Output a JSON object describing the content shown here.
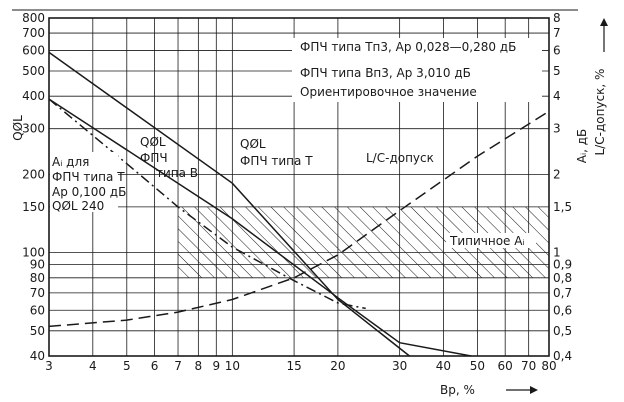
{
  "chart_data": {
    "type": "line",
    "x_scale": "log",
    "y_scale": "log",
    "xlim": [
      3,
      80
    ],
    "ylim_left": [
      40,
      800
    ],
    "ylim_right": [
      0.4,
      8
    ],
    "grid": true,
    "x_ticks": [
      3,
      4,
      5,
      6,
      7,
      8,
      9,
      10,
      15,
      20,
      30,
      40,
      50,
      60,
      70,
      80
    ],
    "x_tick_labels": [
      "3",
      "4",
      "5",
      "6",
      "7",
      "8",
      "9",
      "10",
      "15",
      "20",
      "30",
      "40",
      "50",
      "60",
      "70",
      "80"
    ],
    "y_left_ticks": [
      40,
      50,
      60,
      70,
      80,
      90,
      100,
      150,
      200,
      300,
      400,
      500,
      600,
      700,
      800
    ],
    "y_left_tick_labels": [
      "40",
      "50",
      "60",
      "70",
      "80",
      "90",
      "100",
      "150",
      "200",
      "300",
      "400",
      "500",
      "600",
      "700",
      "800"
    ],
    "y_right_ticks": [
      0.4,
      0.5,
      0.6,
      0.7,
      0.8,
      0.9,
      1,
      1.5,
      2,
      3,
      4,
      5,
      6,
      7,
      8
    ],
    "y_right_tick_labels": [
      "0,4",
      "0,5",
      "0,6",
      "0,7",
      "0,8",
      "0,9",
      "1",
      "1,5",
      "2",
      "3",
      "4",
      "5",
      "6",
      "7",
      "8"
    ],
    "xlabel": "Bр, %",
    "ylabel_left": "QØL",
    "ylabel_right_1": "Aᵢ, дБ",
    "ylabel_right_2": "L/C-допуск, %",
    "series": [
      {
        "name": "QØL ФПЧ типа Т",
        "style": "solid",
        "x": [
          3,
          10,
          20,
          32
        ],
        "y": [
          590,
          185,
          66,
          40
        ]
      },
      {
        "name": "QØL ФПЧ типа В",
        "style": "solid",
        "x": [
          3,
          10,
          20,
          30,
          48
        ],
        "y": [
          390,
          135,
          67,
          45,
          40
        ]
      },
      {
        "name": "Aᵢ для ФПЧ типа Т",
        "style": "dash-dot",
        "x": [
          3,
          5,
          7,
          10,
          15,
          20,
          24
        ],
        "y": [
          3.9,
          2.2,
          1.5,
          1.05,
          0.78,
          0.64,
          0.61
        ]
      },
      {
        "name": "L/C-допуск",
        "style": "dashed",
        "x": [
          3,
          5,
          7,
          10,
          15,
          20,
          30,
          50,
          80
        ],
        "y": [
          0.52,
          0.55,
          0.59,
          0.66,
          0.8,
          0.98,
          1.45,
          2.35,
          3.5
        ]
      }
    ],
    "hatched_band": {
      "label": "Типичное Aᵢ",
      "y_from": 0.8,
      "y_to": 1.5
    },
    "annotations": {
      "note1": "ФПЧ типа Tп3, Aр 0,028—0,280 дБ",
      "note2": "ФПЧ типа Вп3, Aр 3,010 дБ",
      "note3": "Ориентировочное значение",
      "curve_t_line1": "QØL",
      "curve_t_line2": "ФПЧ типа Т",
      "curve_b_line1": "QØL",
      "curve_b_line2": "ФПЧ",
      "curve_b_line3": "типа В",
      "lc_label": "L/C-допуск",
      "ai_line1": "Aᵢ для",
      "ai_line2": "ФПЧ типа Т",
      "ai_line3": "Aр 0,100 дБ",
      "ai_line4": "QØL 240",
      "typical": "Типичное Aᵢ"
    }
  }
}
